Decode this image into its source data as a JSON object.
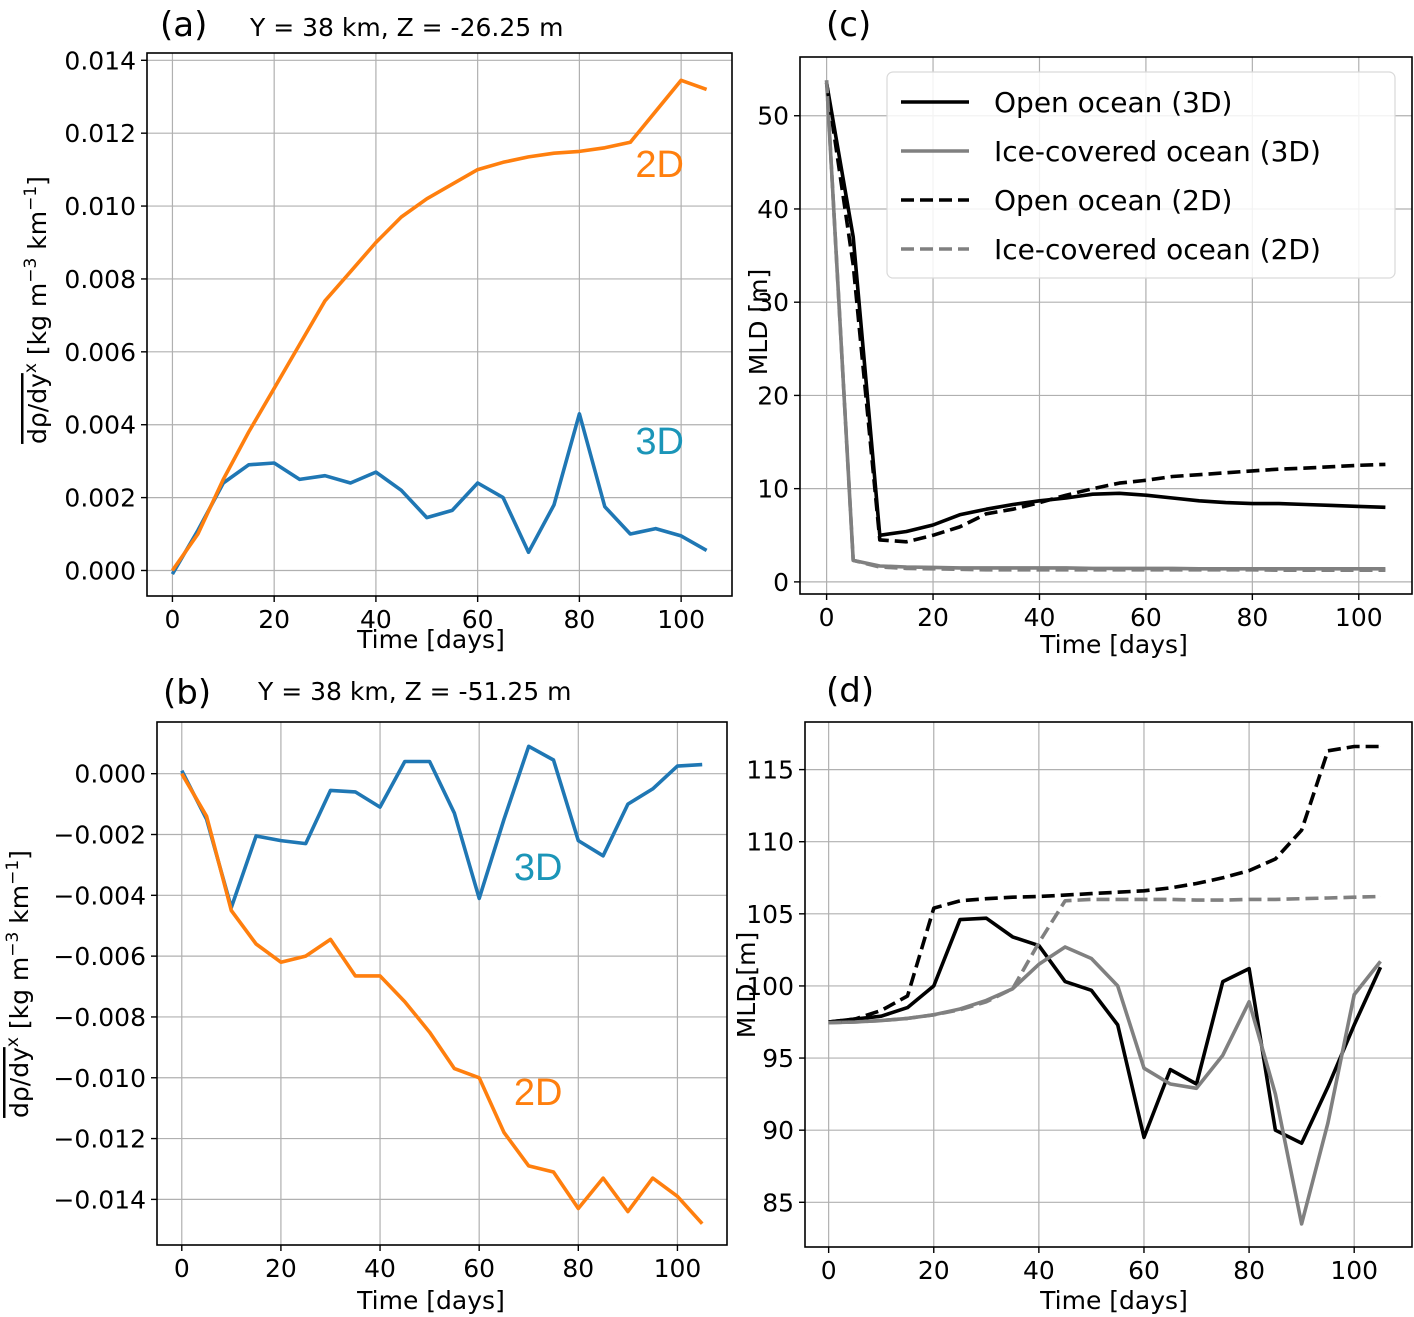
{
  "chart_data": [
    {
      "id": "a",
      "type": "line",
      "panel_letter": "(a)",
      "title": "Y = 38 km, Z = -26.25 m",
      "xlabel": "Time [days]",
      "ylabel": "dρ/dy^x [kg m^-3 km^-1]",
      "ylabel_parts": {
        "main": "dρ/dy",
        "sup_x": "x",
        "unit_a": " [kg m",
        "sup_a": "−3",
        "unit_b": " km",
        "sup_b": "−1",
        "unit_c": "]"
      },
      "xlim": [
        -5,
        110
      ],
      "ylim": [
        -0.0007,
        0.0142
      ],
      "xticks": [
        0,
        20,
        40,
        60,
        80,
        100
      ],
      "xtick_labels": [
        "0",
        "20",
        "40",
        "60",
        "80",
        "100"
      ],
      "yticks": [
        0.0,
        0.002,
        0.004,
        0.006,
        0.008,
        0.01,
        0.012,
        0.014
      ],
      "ytick_labels": [
        "0.000",
        "0.002",
        "0.004",
        "0.006",
        "0.008",
        "0.010",
        "0.012",
        "0.014"
      ],
      "grid": true,
      "x": [
        0,
        5,
        10,
        15,
        20,
        25,
        30,
        35,
        40,
        45,
        50,
        55,
        60,
        65,
        70,
        75,
        80,
        85,
        90,
        95,
        100,
        105
      ],
      "series": [
        {
          "name": "3D",
          "color": "#1f77b4",
          "dash": "solid",
          "values": [
            -0.0001,
            0.0011,
            0.0024,
            0.0029,
            0.00295,
            0.0025,
            0.0026,
            0.0024,
            0.0027,
            0.0022,
            0.00145,
            0.00165,
            0.0024,
            0.002,
            0.0005,
            0.0018,
            0.0043,
            0.00175,
            0.001,
            0.00115,
            0.00095,
            0.00055
          ]
        },
        {
          "name": "2D",
          "color": "#ff7f0e",
          "dash": "solid",
          "values": [
            0.0,
            0.001,
            0.0025,
            0.0038,
            0.005,
            0.0062,
            0.0074,
            0.0082,
            0.009,
            0.0097,
            0.0102,
            0.0106,
            0.011,
            0.0112,
            0.01135,
            0.01145,
            0.0115,
            0.0116,
            0.01175,
            0.0126,
            0.01345,
            0.0132
          ]
        }
      ],
      "annotations": [
        {
          "text": "2D",
          "x": 91,
          "y": 0.0108,
          "color": "#ff7f0e"
        },
        {
          "text": "3D",
          "x": 91,
          "y": 0.0032,
          "color": "#1b95b8"
        }
      ]
    },
    {
      "id": "b",
      "type": "line",
      "panel_letter": "(b)",
      "title": "Y = 38 km, Z = -51.25 m",
      "xlabel": "Time [days]",
      "ylabel": "dρ/dy^x [kg m^-3 km^-1]",
      "ylabel_parts": {
        "main": "dρ/dy",
        "sup_x": "x",
        "unit_a": " [kg m",
        "sup_a": "−3",
        "unit_b": " km",
        "sup_b": "−1",
        "unit_c": "]"
      },
      "xlim": [
        -5,
        110
      ],
      "ylim": [
        -0.0155,
        0.0017
      ],
      "xticks": [
        0,
        20,
        40,
        60,
        80,
        100
      ],
      "xtick_labels": [
        "0",
        "20",
        "40",
        "60",
        "80",
        "100"
      ],
      "yticks": [
        0.0,
        -0.002,
        -0.004,
        -0.006,
        -0.008,
        -0.01,
        -0.012,
        -0.014
      ],
      "ytick_labels": [
        "0.000",
        "−0.002",
        "−0.004",
        "−0.006",
        "−0.008",
        "−0.010",
        "−0.012",
        "−0.014"
      ],
      "grid": true,
      "x": [
        0,
        5,
        10,
        15,
        20,
        25,
        30,
        35,
        40,
        45,
        50,
        55,
        60,
        65,
        70,
        75,
        80,
        85,
        90,
        95,
        100,
        105
      ],
      "series": [
        {
          "name": "3D",
          "color": "#1f77b4",
          "dash": "solid",
          "values": [
            0.0001,
            -0.0015,
            -0.0044,
            -0.00205,
            -0.0022,
            -0.0023,
            -0.00055,
            -0.0006,
            -0.0011,
            0.0004,
            0.0004,
            -0.0013,
            -0.0041,
            -0.0015,
            0.0009,
            0.00045,
            -0.0022,
            -0.0027,
            -0.001,
            -0.0005,
            0.00025,
            0.0003
          ]
        },
        {
          "name": "2D",
          "color": "#ff7f0e",
          "dash": "solid",
          "values": [
            0.0,
            -0.0014,
            -0.0045,
            -0.0056,
            -0.0062,
            -0.006,
            -0.00545,
            -0.00665,
            -0.00665,
            -0.0075,
            -0.0085,
            -0.0097,
            -0.01,
            -0.0118,
            -0.0129,
            -0.0131,
            -0.0143,
            -0.0133,
            -0.0144,
            -0.0133,
            -0.0139,
            -0.0148
          ]
        }
      ],
      "annotations": [
        {
          "text": "3D",
          "x": 67,
          "y": -0.0035,
          "color": "#1b95b8"
        },
        {
          "text": "2D",
          "x": 67,
          "y": -0.0109,
          "color": "#ff7f0e"
        }
      ]
    },
    {
      "id": "c",
      "type": "line",
      "panel_letter": "(c)",
      "title": "",
      "xlabel": "Time [days]",
      "ylabel": "MLD [m]",
      "xlim": [
        -5,
        110
      ],
      "ylim": [
        -1.3,
        56.3
      ],
      "xticks": [
        0,
        20,
        40,
        60,
        80,
        100
      ],
      "xtick_labels": [
        "0",
        "20",
        "40",
        "60",
        "80",
        "100"
      ],
      "yticks": [
        0,
        10,
        20,
        30,
        40,
        50
      ],
      "ytick_labels": [
        "0",
        "10",
        "20",
        "30",
        "40",
        "50"
      ],
      "grid": true,
      "x": [
        0,
        5,
        10,
        15,
        20,
        25,
        30,
        35,
        40,
        45,
        50,
        55,
        60,
        65,
        70,
        75,
        80,
        85,
        90,
        95,
        100,
        105
      ],
      "series": [
        {
          "name": "Open ocean (3D)",
          "color": "#000000",
          "dash": "solid",
          "values": [
            53.5,
            37.0,
            5.0,
            5.4,
            6.1,
            7.2,
            7.8,
            8.3,
            8.7,
            9.0,
            9.4,
            9.5,
            9.3,
            9.0,
            8.7,
            8.5,
            8.4,
            8.4,
            8.3,
            8.2,
            8.1,
            8.0
          ]
        },
        {
          "name": "Ice-covered ocean (3D)",
          "color": "#808080",
          "dash": "solid",
          "values": [
            53.8,
            2.3,
            1.7,
            1.6,
            1.55,
            1.5,
            1.5,
            1.5,
            1.5,
            1.5,
            1.45,
            1.45,
            1.45,
            1.45,
            1.4,
            1.4,
            1.4,
            1.4,
            1.4,
            1.4,
            1.4,
            1.4
          ]
        },
        {
          "name": "Open ocean (2D)",
          "color": "#000000",
          "dash": "dashed",
          "values": [
            53.5,
            34.0,
            4.5,
            4.3,
            5.0,
            5.9,
            7.3,
            7.8,
            8.5,
            9.3,
            10.0,
            10.6,
            10.9,
            11.3,
            11.5,
            11.7,
            11.9,
            12.1,
            12.2,
            12.35,
            12.5,
            12.6
          ]
        },
        {
          "name": "Ice-covered ocean (2D)",
          "color": "#808080",
          "dash": "dashed",
          "values": [
            53.8,
            2.3,
            1.6,
            1.45,
            1.4,
            1.35,
            1.3,
            1.3,
            1.3,
            1.3,
            1.3,
            1.3,
            1.3,
            1.3,
            1.3,
            1.3,
            1.3,
            1.25,
            1.25,
            1.25,
            1.25,
            1.25
          ]
        }
      ],
      "legend": {
        "placement": "upper-right",
        "entries": [
          "Open ocean (3D)",
          "Ice-covered ocean (3D)",
          "Open ocean (2D)",
          "Ice-covered ocean (2D)"
        ]
      }
    },
    {
      "id": "d",
      "type": "line",
      "panel_letter": "(d)",
      "title": "",
      "xlabel": "Time [days]",
      "ylabel": "MLD [m]",
      "xlim": [
        -4.5,
        111
      ],
      "ylim": [
        81.9,
        118.3
      ],
      "xticks": [
        0,
        20,
        40,
        60,
        80,
        100
      ],
      "xtick_labels": [
        "0",
        "20",
        "40",
        "60",
        "80",
        "100"
      ],
      "yticks": [
        85,
        90,
        95,
        100,
        105,
        110,
        115
      ],
      "ytick_labels": [
        "85",
        "90",
        "95",
        "100",
        "105",
        "110",
        "115"
      ],
      "grid": true,
      "x": [
        0,
        5,
        10,
        15,
        20,
        25,
        30,
        35,
        40,
        45,
        50,
        55,
        60,
        65,
        70,
        75,
        80,
        85,
        90,
        95,
        100,
        105
      ],
      "series": [
        {
          "name": "Open ocean (3D)",
          "color": "#000000",
          "dash": "solid",
          "values": [
            97.5,
            97.7,
            97.9,
            98.5,
            100.0,
            104.6,
            104.7,
            103.4,
            102.8,
            100.3,
            99.7,
            97.3,
            89.5,
            94.2,
            93.2,
            100.3,
            101.2,
            90.0,
            89.1,
            93.0,
            97.3,
            101.3
          ]
        },
        {
          "name": "Ice-covered ocean (3D)",
          "color": "#808080",
          "dash": "solid",
          "values": [
            97.45,
            97.5,
            97.6,
            97.75,
            98.0,
            98.4,
            99.0,
            99.8,
            101.5,
            102.7,
            101.9,
            100.0,
            94.3,
            93.2,
            92.9,
            95.2,
            98.9,
            92.5,
            83.5,
            90.5,
            99.4,
            101.7
          ]
        },
        {
          "name": "Open ocean (2D)",
          "color": "#000000",
          "dash": "dashed",
          "values": [
            97.5,
            97.7,
            98.3,
            99.3,
            105.4,
            105.9,
            106.05,
            106.15,
            106.2,
            106.3,
            106.4,
            106.5,
            106.6,
            106.8,
            107.1,
            107.5,
            108.0,
            108.8,
            110.8,
            116.3,
            116.6,
            116.6
          ]
        },
        {
          "name": "Ice-covered ocean (2D)",
          "color": "#808080",
          "dash": "dashed",
          "values": [
            97.45,
            97.5,
            97.6,
            97.75,
            98.0,
            98.35,
            98.9,
            99.8,
            103.0,
            105.9,
            106.0,
            106.0,
            106.0,
            106.0,
            105.95,
            105.95,
            106.0,
            106.0,
            106.05,
            106.1,
            106.15,
            106.2
          ]
        }
      ]
    }
  ]
}
